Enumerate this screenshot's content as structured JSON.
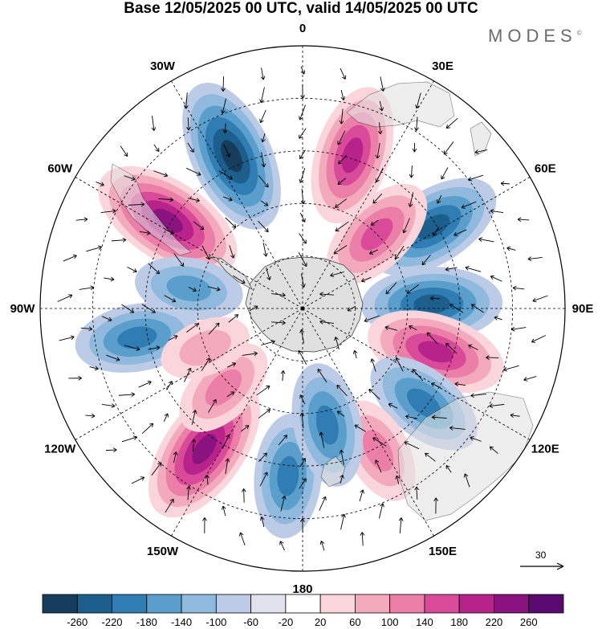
{
  "title": "Base 12/05/2025 00 UTC, valid 14/05/2025 00 UTC",
  "brand": "MODES",
  "brand_mark": "©",
  "longitude_labels": [
    {
      "text": "0",
      "lon": 0
    },
    {
      "text": "30E",
      "lon": 30
    },
    {
      "text": "60E",
      "lon": 60
    },
    {
      "text": "90E",
      "lon": 90
    },
    {
      "text": "120E",
      "lon": 120
    },
    {
      "text": "150E",
      "lon": 150
    },
    {
      "text": "180",
      "lon": 180
    },
    {
      "text": "150W",
      "lon": -150
    },
    {
      "text": "120W",
      "lon": -120
    },
    {
      "text": "90W",
      "lon": -90
    },
    {
      "text": "60W",
      "lon": -60
    },
    {
      "text": "30W",
      "lon": -30
    }
  ],
  "reference_vector": "30",
  "colorbar": {
    "labels": [
      "-260",
      "-220",
      "-180",
      "-140",
      "-100",
      "-60",
      "-20",
      "20",
      "60",
      "100",
      "140",
      "180",
      "220",
      "260"
    ],
    "colors": [
      "#173d5c",
      "#1c5f8c",
      "#2f7db3",
      "#5a9fcc",
      "#8fb9dd",
      "#bccbe6",
      "#e2e2ef",
      "#ffffff",
      "#fad6dc",
      "#f4aabd",
      "#ec7fa8",
      "#d94a99",
      "#b7238a",
      "#8a1380",
      "#5a0a6e"
    ]
  },
  "anomalies": [
    {
      "name": "blue-30w",
      "lon": -25,
      "lat": -42,
      "sign": -1,
      "level": 5
    },
    {
      "name": "pink-60w",
      "lon": -57,
      "lat": -44,
      "sign": 1,
      "level": 5
    },
    {
      "name": "pink-20e",
      "lon": 18,
      "lat": -44,
      "sign": 1,
      "level": 4
    },
    {
      "name": "blue-55e",
      "lon": 58,
      "lat": -46,
      "sign": -1,
      "level": 4
    },
    {
      "name": "pink-40e",
      "lon": 45,
      "lat": -60,
      "sign": 1,
      "level": 3
    },
    {
      "name": "blue-85e",
      "lon": 88,
      "lat": -53,
      "sign": -1,
      "level": 4
    },
    {
      "name": "pink-105e",
      "lon": 108,
      "lat": -50,
      "sign": 1,
      "level": 4
    },
    {
      "name": "blue-125e",
      "lon": 128,
      "lat": -46,
      "sign": -1,
      "level": 3
    },
    {
      "name": "pink-150e",
      "lon": 152,
      "lat": -44,
      "sign": 1,
      "level": 2
    },
    {
      "name": "blue-175w",
      "lon": -175,
      "lat": -42,
      "sign": -1,
      "level": 3
    },
    {
      "name": "blue-165e",
      "lon": 168,
      "lat": -56,
      "sign": -1,
      "level": 3
    },
    {
      "name": "pink-145w",
      "lon": -145,
      "lat": -41,
      "sign": 1,
      "level": 5
    },
    {
      "name": "pink-135w",
      "lon": -135,
      "lat": -58,
      "sign": 1,
      "level": 2
    },
    {
      "name": "blue-95w",
      "lon": -100,
      "lat": -42,
      "sign": -1,
      "level": 3
    },
    {
      "name": "blue-80w",
      "lon": -80,
      "lat": -57,
      "sign": -1,
      "level": 2
    },
    {
      "name": "pink-110w",
      "lon": -112,
      "lat": -60,
      "sign": 1,
      "level": 1
    }
  ]
}
